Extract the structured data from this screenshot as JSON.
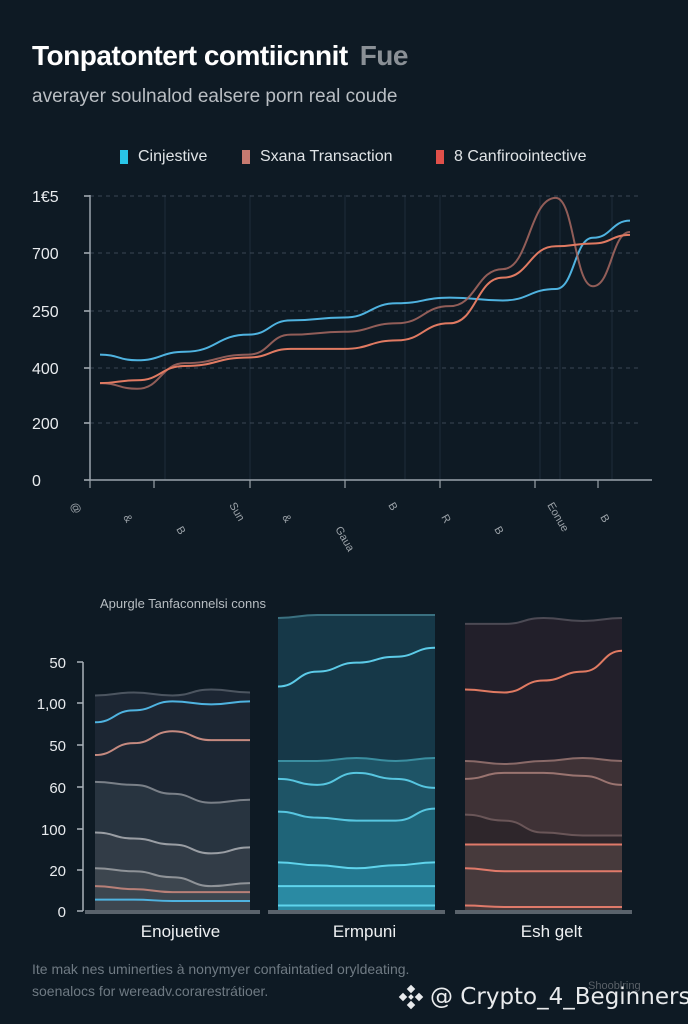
{
  "header": {
    "title": "Tonpatontert comtiicnnit",
    "title_suffix": "Fue",
    "subtitle": "averayer soulnalod ealsere porn real coude"
  },
  "footer": {
    "line1": "Ite mak nes uminerties à nonymyer confaintatied oryldeating.",
    "line2": "soenalocs for wereadv.corarestrátioer.",
    "watermark": "@ Crypto_4_Beginners",
    "watermark_small": "Shooblring"
  },
  "chart_data": [
    {
      "type": "line",
      "title": "Tonpatontert comtiicnnit Fue",
      "subtitle": "averayer soulnalod ealsere porn real coude",
      "legend_position": "top-center",
      "grid": true,
      "y_tick_labels": [
        "0",
        "200",
        "400",
        "250",
        "700",
        "1€5"
      ],
      "x_tick_labels": [
        "@",
        "&",
        "B",
        "Sun",
        "&",
        "Gaua",
        "B",
        "R",
        "B",
        "Eonue",
        "B"
      ],
      "x_count": 11,
      "y_range": [
        0,
        5
      ],
      "series": [
        {
          "name": "Cinjestive",
          "color": "#4fb3e0",
          "values": [
            2.2,
            2.1,
            2.25,
            2.55,
            2.8,
            2.85,
            3.1,
            3.2,
            3.15,
            3.35,
            4.25,
            4.55
          ]
        },
        {
          "name": "Sxana Transaction",
          "color": "#a86a62",
          "values": [
            1.7,
            1.6,
            2.05,
            2.2,
            2.55,
            2.6,
            2.75,
            3.05,
            3.7,
            4.95,
            3.4,
            4.35
          ]
        },
        {
          "name": "8 Canfiroointective",
          "color": "#e07a62",
          "values": [
            1.7,
            1.75,
            2.0,
            2.15,
            2.3,
            2.3,
            2.45,
            2.75,
            3.55,
            4.1,
            4.15,
            4.3
          ]
        }
      ],
      "series_x": [
        0,
        0.07,
        0.16,
        0.28,
        0.36,
        0.46,
        0.56,
        0.66,
        0.76,
        0.86,
        0.93,
        1.0
      ]
    },
    {
      "type": "area",
      "title": "Apurgle Tanfaconnelsi conns",
      "y_tick_labels": [
        "0",
        "20",
        "100",
        "60",
        "50",
        "1,00",
        "50"
      ],
      "categories": [
        "Enojuetive",
        "Ermpuni",
        "Esh gelt"
      ],
      "panels": [
        {
          "name": "Enojuetive",
          "theme": "gray",
          "bands": [
            {
              "top": [
                0.72,
                0.73,
                0.72,
                0.74,
                0.73
              ],
              "fill": "#1c2633",
              "line": "#4c5560"
            },
            {
              "top": [
                0.43,
                0.42,
                0.39,
                0.36,
                0.37
              ],
              "fill": "#283440",
              "line": "#7a8088"
            },
            {
              "top": [
                0.26,
                0.24,
                0.22,
                0.19,
                0.21
              ],
              "fill": "#323c47",
              "line": "#9a9ea4"
            },
            {
              "top": [
                0.14,
                0.13,
                0.11,
                0.08,
                0.09
              ],
              "fill": "#3d464f",
              "line": "#8f9398"
            }
          ],
          "lines": [
            {
              "values": [
                0.63,
                0.67,
                0.7,
                0.69,
                0.7
              ],
              "color": "#4fb3e0"
            },
            {
              "values": [
                0.52,
                0.56,
                0.6,
                0.57,
                0.57
              ],
              "color": "#c58a80"
            },
            {
              "values": [
                0.08,
                0.07,
                0.06,
                0.06,
                0.06
              ],
              "color": "#b88078"
            },
            {
              "values": [
                0.035,
                0.035,
                0.03,
                0.03,
                0.03
              ],
              "color": "#4fb3e0"
            }
          ]
        },
        {
          "name": "Ermpuni",
          "theme": "teal",
          "bands": [
            {
              "top": [
                0.98,
                0.99,
                0.99,
                0.99,
                0.99
              ],
              "fill": "#163848",
              "line": "#3a7080"
            },
            {
              "top": [
                0.5,
                0.5,
                0.51,
                0.5,
                0.51
              ],
              "fill": "#1e5466",
              "line": "#3a8ea0"
            },
            {
              "top": [
                0.33,
                0.31,
                0.3,
                0.3,
                0.34
              ],
              "fill": "#1f6478",
              "line": "#57c6e0"
            },
            {
              "top": [
                0.16,
                0.15,
                0.14,
                0.15,
                0.16
              ],
              "fill": "#237890",
              "line": "#5fd4ec"
            },
            {
              "top": [
                0.08,
                0.08,
                0.08,
                0.08,
                0.08
              ],
              "fill": "#2a8aa3",
              "line": "#5fd4ec"
            }
          ],
          "lines": [
            {
              "values": [
                0.75,
                0.8,
                0.83,
                0.85,
                0.88
              ],
              "color": "#5ccbe8"
            },
            {
              "values": [
                0.44,
                0.42,
                0.46,
                0.44,
                0.41
              ],
              "color": "#57c6e0"
            },
            {
              "values": [
                0.015,
                0.015,
                0.015,
                0.015,
                0.015
              ],
              "color": "#5fd4ec"
            }
          ]
        },
        {
          "name": "Esh gelt",
          "theme": "rose",
          "bands": [
            {
              "top": [
                0.96,
                0.96,
                0.98,
                0.97,
                0.98
              ],
              "fill": "#221f2a",
              "line": "#4c4a54"
            },
            {
              "top": [
                0.5,
                0.49,
                0.5,
                0.51,
                0.5
              ],
              "fill": "#3f3236",
              "line": "#8a6a68"
            },
            {
              "top": [
                0.32,
                0.3,
                0.26,
                0.25,
                0.25
              ],
              "fill": "#2e262b",
              "line": "#6a5658"
            },
            {
              "top": [
                0.22,
                0.22,
                0.22,
                0.22,
                0.22
              ],
              "fill": "#473a3c",
              "line": "#e07a6a"
            }
          ],
          "lines": [
            {
              "values": [
                0.74,
                0.73,
                0.77,
                0.8,
                0.87
              ],
              "color": "#e07a62"
            },
            {
              "values": [
                0.44,
                0.46,
                0.46,
                0.45,
                0.42
              ],
              "color": "#9a7470"
            },
            {
              "values": [
                0.14,
                0.13,
                0.13,
                0.13,
                0.13
              ],
              "color": "#e07a6a"
            },
            {
              "values": [
                0.015,
                0.01,
                0.01,
                0.01,
                0.01
              ],
              "color": "#e07a6a"
            }
          ]
        }
      ]
    }
  ]
}
